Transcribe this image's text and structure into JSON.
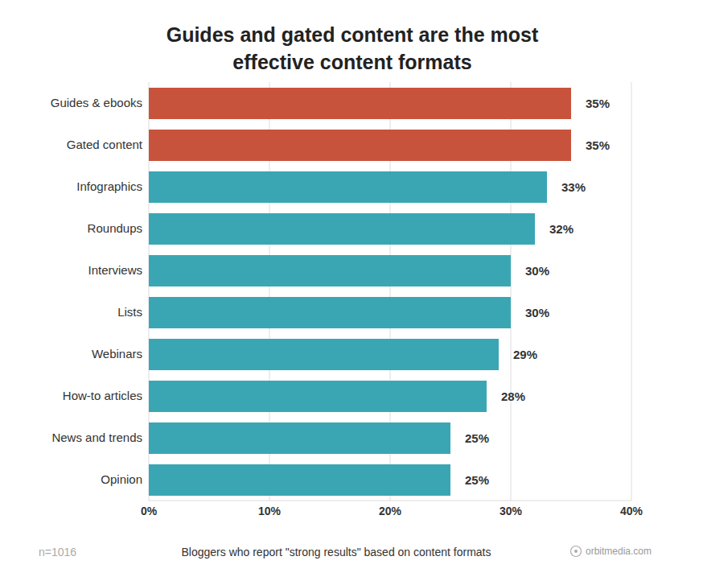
{
  "chart_data": {
    "type": "bar",
    "orientation": "horizontal",
    "title": "Guides and gated content are the most effective content formats",
    "xlabel": "Bloggers who report \"strong results\" based on content formats",
    "annotations": [
      "n=1016",
      "orbitmedia.com"
    ],
    "categories": [
      "Guides & ebooks",
      "Gated content",
      "Infographics",
      "Roundups",
      "Interviews",
      "Lists",
      "Webinars",
      "How-to articles",
      "News and trends",
      "Opinion"
    ],
    "values": [
      35,
      35,
      33,
      32,
      30,
      30,
      29,
      28,
      25,
      25
    ],
    "value_labels": [
      "35%",
      "35%",
      "33%",
      "32%",
      "30%",
      "30%",
      "29%",
      "28%",
      "25%",
      "25%"
    ],
    "colors": [
      "#c8533c",
      "#c8533c",
      "#3aa6b4",
      "#3aa6b4",
      "#3aa6b4",
      "#3aa6b4",
      "#3aa6b4",
      "#3aa6b4",
      "#3aa6b4",
      "#3aa6b4"
    ],
    "xlim": [
      0,
      40
    ],
    "xticks": [
      {
        "value": 0,
        "label": "0%"
      },
      {
        "value": 10,
        "label": "10%"
      },
      {
        "value": 20,
        "label": "20%"
      },
      {
        "value": 30,
        "label": "30%"
      },
      {
        "value": 40,
        "label": "40%"
      }
    ],
    "grid": true,
    "data_labels": true
  }
}
